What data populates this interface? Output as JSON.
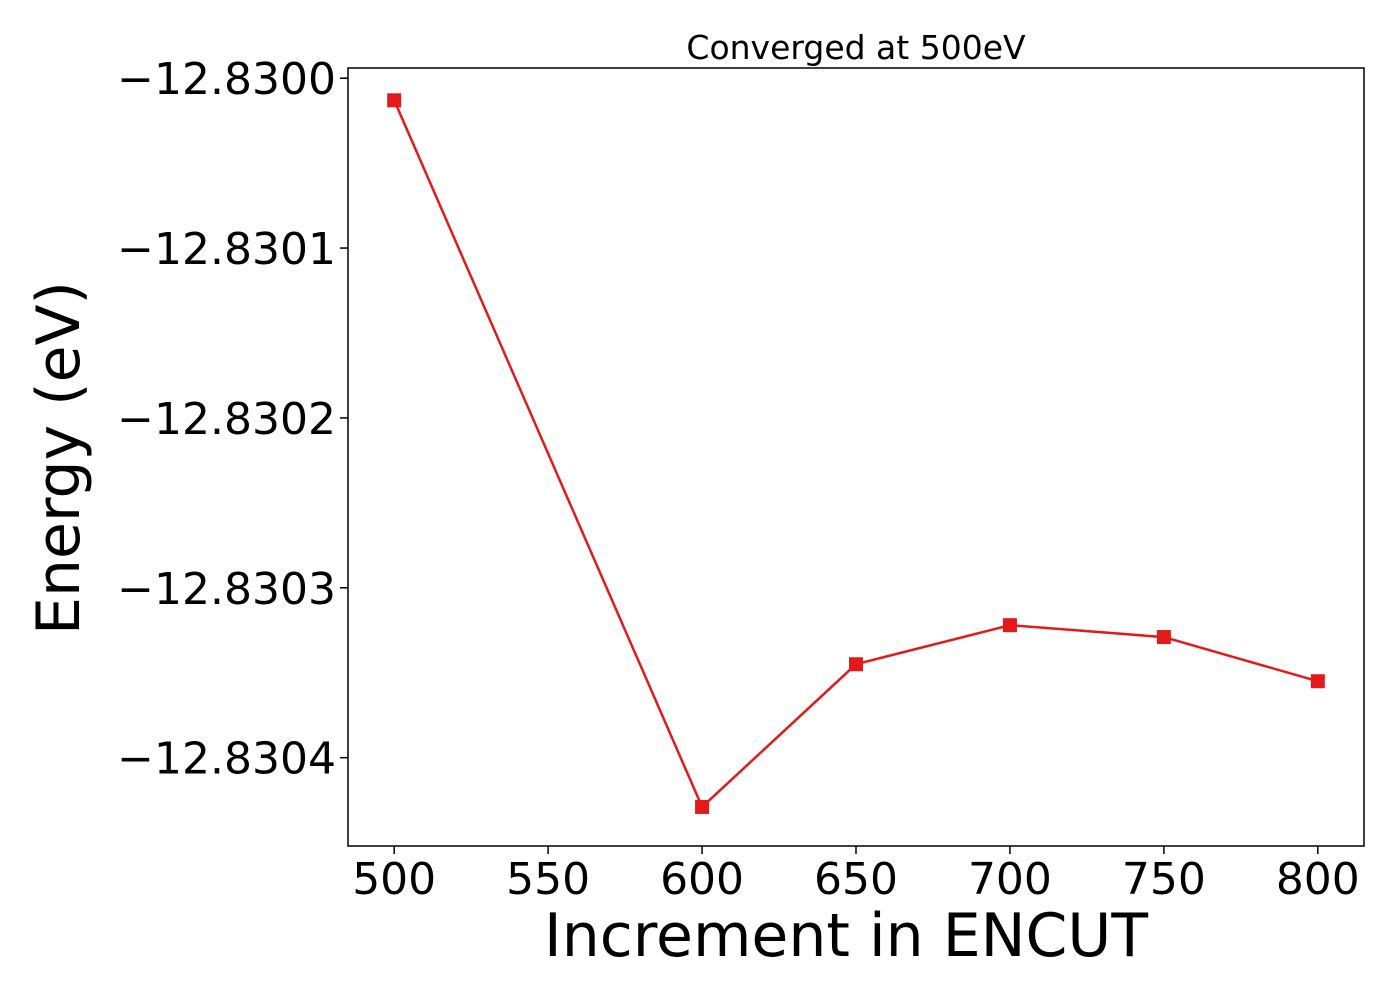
{
  "chart_data": {
    "type": "line",
    "title": "Converged at 500eV",
    "xlabel": "Increment in ENCUT",
    "ylabel": "Energy (eV)",
    "x": [
      500,
      600,
      650,
      700,
      750,
      800
    ],
    "series": [
      {
        "values": [
          -12.830013,
          -12.830429,
          -12.830345,
          -12.830322,
          -12.830329,
          -12.830355
        ],
        "color": "#e31a1c",
        "marker": "square"
      }
    ],
    "xlim": [
      485,
      815
    ],
    "ylim": [
      -12.830452,
      -12.829994
    ],
    "x_ticks": [
      500,
      550,
      600,
      650,
      700,
      750,
      800
    ],
    "x_tick_labels": [
      "500",
      "550",
      "600",
      "650",
      "700",
      "750",
      "800"
    ],
    "y_ticks": [
      -12.83,
      -12.8301,
      -12.8302,
      -12.8303,
      -12.8304
    ],
    "y_tick_labels": [
      "−12.8300",
      "−12.8301",
      "−12.8302",
      "−12.8303",
      "−12.8304"
    ],
    "grid": false,
    "legend": "none"
  }
}
